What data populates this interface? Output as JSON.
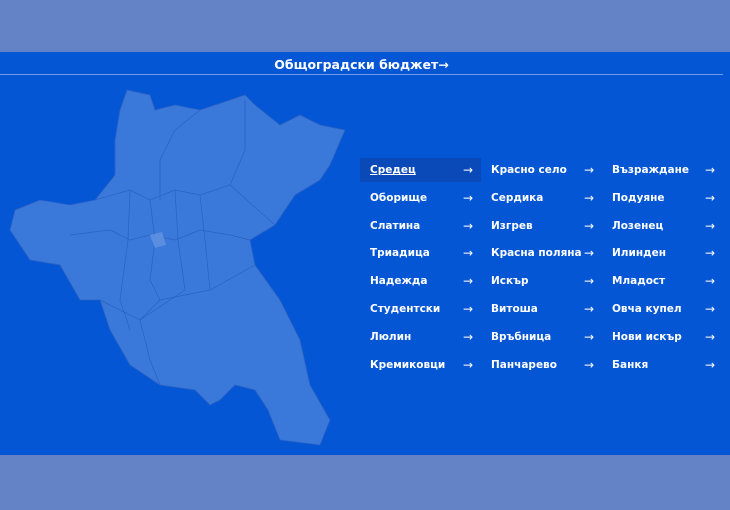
{
  "header": {
    "title": "Общоградски бюджет",
    "arrow_icon": "arrow-right-icon"
  },
  "colors": {
    "panel": "#0556d5",
    "map": "#3a78da",
    "overlay": "#6383c6",
    "active": "#0a49b8"
  },
  "districts": [
    {
      "label": "Средец",
      "active": true
    },
    {
      "label": "Красно село"
    },
    {
      "label": "Възраждане"
    },
    {
      "label": "Оборище"
    },
    {
      "label": "Сердика"
    },
    {
      "label": "Подуяне"
    },
    {
      "label": "Слатина"
    },
    {
      "label": "Изгрев"
    },
    {
      "label": "Лозенец"
    },
    {
      "label": "Триадица"
    },
    {
      "label": "Красна поляна"
    },
    {
      "label": "Илинден"
    },
    {
      "label": "Надежда"
    },
    {
      "label": "Искър"
    },
    {
      "label": "Младост"
    },
    {
      "label": "Студентски"
    },
    {
      "label": "Витоша"
    },
    {
      "label": "Овча купел"
    },
    {
      "label": "Люлин"
    },
    {
      "label": "Връбница"
    },
    {
      "label": "Нови искър"
    },
    {
      "label": "Кремиковци"
    },
    {
      "label": "Панчарево"
    },
    {
      "label": "Банкя"
    }
  ]
}
